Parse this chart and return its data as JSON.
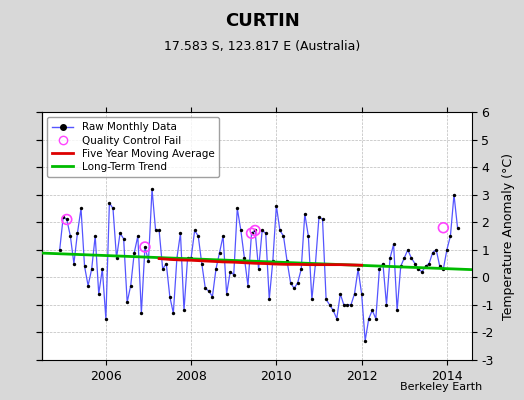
{
  "title": "CURTIN",
  "subtitle": "17.583 S, 123.817 E (Australia)",
  "ylabel": "Temperature Anomaly (°C)",
  "credit": "Berkeley Earth",
  "ylim": [
    -3,
    6
  ],
  "xlim": [
    2004.5,
    2014.58
  ],
  "xticks": [
    2006,
    2008,
    2010,
    2012,
    2014
  ],
  "yticks": [
    -3,
    -2,
    -1,
    0,
    1,
    2,
    3,
    4,
    5,
    6
  ],
  "bg_color": "#d8d8d8",
  "plot_bg_color": "#ffffff",
  "raw_color": "#5555ff",
  "raw_marker_color": "#000000",
  "qc_color": "#ff44ff",
  "moving_avg_color": "#dd0000",
  "trend_color": "#00bb00",
  "raw_x": [
    2004.917,
    2005.0,
    2005.083,
    2005.167,
    2005.25,
    2005.333,
    2005.417,
    2005.5,
    2005.583,
    2005.667,
    2005.75,
    2005.833,
    2005.917,
    2006.0,
    2006.083,
    2006.167,
    2006.25,
    2006.333,
    2006.417,
    2006.5,
    2006.583,
    2006.667,
    2006.75,
    2006.833,
    2006.917,
    2007.0,
    2007.083,
    2007.167,
    2007.25,
    2007.333,
    2007.417,
    2007.5,
    2007.583,
    2007.667,
    2007.75,
    2007.833,
    2007.917,
    2008.0,
    2008.083,
    2008.167,
    2008.25,
    2008.333,
    2008.417,
    2008.5,
    2008.583,
    2008.667,
    2008.75,
    2008.833,
    2008.917,
    2009.0,
    2009.083,
    2009.167,
    2009.25,
    2009.333,
    2009.417,
    2009.5,
    2009.583,
    2009.667,
    2009.75,
    2009.833,
    2009.917,
    2010.0,
    2010.083,
    2010.167,
    2010.25,
    2010.333,
    2010.417,
    2010.5,
    2010.583,
    2010.667,
    2010.75,
    2010.833,
    2010.917,
    2011.0,
    2011.083,
    2011.167,
    2011.25,
    2011.333,
    2011.417,
    2011.5,
    2011.583,
    2011.667,
    2011.75,
    2011.833,
    2011.917,
    2012.0,
    2012.083,
    2012.167,
    2012.25,
    2012.333,
    2012.417,
    2012.5,
    2012.583,
    2012.667,
    2012.75,
    2012.833,
    2012.917,
    2013.0,
    2013.083,
    2013.167,
    2013.25,
    2013.333,
    2013.417,
    2013.5,
    2013.583,
    2013.667,
    2013.75,
    2013.833,
    2013.917,
    2014.0,
    2014.083,
    2014.167,
    2014.25
  ],
  "raw_y": [
    1.0,
    2.2,
    2.1,
    1.5,
    0.5,
    1.6,
    2.5,
    0.4,
    -0.3,
    0.3,
    1.5,
    -0.6,
    0.3,
    -1.5,
    2.7,
    2.5,
    0.7,
    1.6,
    1.4,
    -0.9,
    -0.3,
    0.9,
    1.5,
    -1.3,
    1.1,
    0.6,
    3.2,
    1.7,
    1.7,
    0.3,
    0.5,
    -0.7,
    -1.3,
    0.7,
    1.6,
    -1.2,
    0.7,
    0.7,
    1.7,
    1.5,
    0.5,
    -0.4,
    -0.5,
    -0.7,
    0.3,
    0.9,
    1.5,
    -0.6,
    0.2,
    0.1,
    2.5,
    1.7,
    0.7,
    -0.3,
    1.6,
    1.7,
    0.3,
    1.7,
    1.6,
    -0.8,
    0.6,
    2.6,
    1.7,
    1.5,
    0.6,
    -0.2,
    -0.4,
    -0.2,
    0.3,
    2.3,
    1.5,
    -0.8,
    0.5,
    2.2,
    2.1,
    -0.8,
    -1.0,
    -1.2,
    -1.5,
    -0.6,
    -1.0,
    -1.0,
    -1.0,
    -0.6,
    0.3,
    -0.6,
    -2.3,
    -1.5,
    -1.2,
    -1.5,
    0.3,
    0.5,
    -1.0,
    0.7,
    1.2,
    -1.2,
    0.4,
    0.7,
    1.0,
    0.7,
    0.5,
    0.3,
    0.2,
    0.4,
    0.5,
    0.9,
    1.0,
    0.4,
    0.3,
    1.0,
    1.5,
    3.0,
    1.8
  ],
  "qc_x": [
    2005.083,
    2006.917,
    2009.417,
    2009.5,
    2013.917
  ],
  "qc_y": [
    2.1,
    1.1,
    1.6,
    1.7,
    1.8
  ],
  "moving_avg_x": [
    2007.25,
    2007.5,
    2007.75,
    2008.0,
    2008.25,
    2008.5,
    2008.75,
    2009.0,
    2009.25,
    2009.5,
    2009.75,
    2010.0,
    2010.25,
    2010.5,
    2010.75,
    2011.0,
    2011.25,
    2011.5,
    2011.75,
    2012.0
  ],
  "moving_avg_y": [
    0.68,
    0.65,
    0.63,
    0.62,
    0.6,
    0.58,
    0.56,
    0.55,
    0.53,
    0.51,
    0.5,
    0.48,
    0.47,
    0.47,
    0.46,
    0.46,
    0.46,
    0.46,
    0.45,
    0.44
  ],
  "trend_x": [
    2004.5,
    2014.58
  ],
  "trend_y": [
    0.88,
    0.28
  ],
  "figsize": [
    5.24,
    4.0
  ],
  "dpi": 100
}
